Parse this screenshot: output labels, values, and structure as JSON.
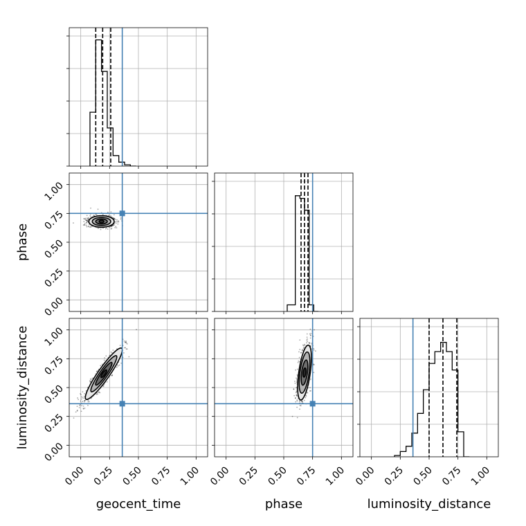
{
  "colors": {
    "truth": "#4682b4",
    "hist": "#000000",
    "contour_fill": [
      "#e8e8e8",
      "#b4b4b4",
      "#6e6e6e",
      "#2a2a2a"
    ]
  },
  "chart_data": {
    "type": "corner",
    "parameters": [
      "geocent_time",
      "phase",
      "luminosity_distance"
    ],
    "axis_labels": [
      "geocent_time",
      "phase",
      "luminosity_distance"
    ],
    "range": [
      -0.1,
      1.1
    ],
    "ticks": [
      0.0,
      0.25,
      0.5,
      0.75,
      1.0
    ],
    "tick_labels": [
      "0.00",
      "0.25",
      "0.50",
      "0.75",
      "1.00"
    ],
    "grid": true,
    "truths": [
      0.36,
      0.75,
      0.36
    ],
    "diagonal": [
      {
        "parameter": "geocent_time",
        "type": "step-histogram",
        "bin_edges": [
          0.08,
          0.13,
          0.18,
          0.23,
          0.28,
          0.33,
          0.38,
          0.43,
          0.48
        ],
        "counts": [
          0.41,
          0.96,
          0.72,
          0.29,
          0.08,
          0.03,
          0.01,
          0.0
        ],
        "quantiles": [
          0.13,
          0.19,
          0.26
        ]
      },
      {
        "parameter": "phase",
        "type": "step-histogram",
        "bin_edges": [
          0.53,
          0.6,
          0.64,
          0.68,
          0.72,
          0.76,
          0.8
        ],
        "counts": [
          0.05,
          0.88,
          0.86,
          0.77,
          0.05,
          0.0
        ],
        "quantiles": [
          0.65,
          0.68,
          0.71
        ]
      },
      {
        "parameter": "luminosity_distance",
        "type": "step-histogram",
        "bin_edges": [
          0.2,
          0.25,
          0.3,
          0.35,
          0.4,
          0.45,
          0.5,
          0.55,
          0.6,
          0.65,
          0.7,
          0.75,
          0.8,
          0.85
        ],
        "counts": [
          0.01,
          0.04,
          0.08,
          0.18,
          0.33,
          0.51,
          0.71,
          0.8,
          0.87,
          0.8,
          0.66,
          0.19,
          0.0
        ],
        "quantiles": [
          0.5,
          0.62,
          0.74
        ]
      }
    ],
    "pairs": [
      {
        "x": "geocent_time",
        "y": "phase",
        "center": [
          0.18,
          0.68
        ],
        "spread": [
          0.05,
          0.025
        ],
        "tilt_deg": 0,
        "levels": [
          {
            "rx": 0.11,
            "ry": 0.05
          },
          {
            "rx": 0.08,
            "ry": 0.035
          },
          {
            "rx": 0.05,
            "ry": 0.022
          },
          {
            "rx": 0.02,
            "ry": 0.012
          }
        ]
      },
      {
        "x": "geocent_time",
        "y": "luminosity_distance",
        "center": [
          0.2,
          0.62
        ],
        "spread": [
          0.07,
          0.14
        ],
        "tilt_deg": -55,
        "levels": [
          {
            "rx": 0.27,
            "ry": 0.05
          },
          {
            "rx": 0.19,
            "ry": 0.035
          },
          {
            "rx": 0.12,
            "ry": 0.022
          },
          {
            "rx": 0.04,
            "ry": 0.012
          }
        ]
      },
      {
        "x": "phase",
        "y": "luminosity_distance",
        "center": [
          0.68,
          0.63
        ],
        "spread": [
          0.025,
          0.12
        ],
        "tilt_deg": -82,
        "levels": [
          {
            "rx": 0.24,
            "ry": 0.05
          },
          {
            "rx": 0.18,
            "ry": 0.04
          },
          {
            "rx": 0.11,
            "ry": 0.025
          },
          {
            "rx": 0.04,
            "ry": 0.012
          }
        ]
      }
    ]
  }
}
